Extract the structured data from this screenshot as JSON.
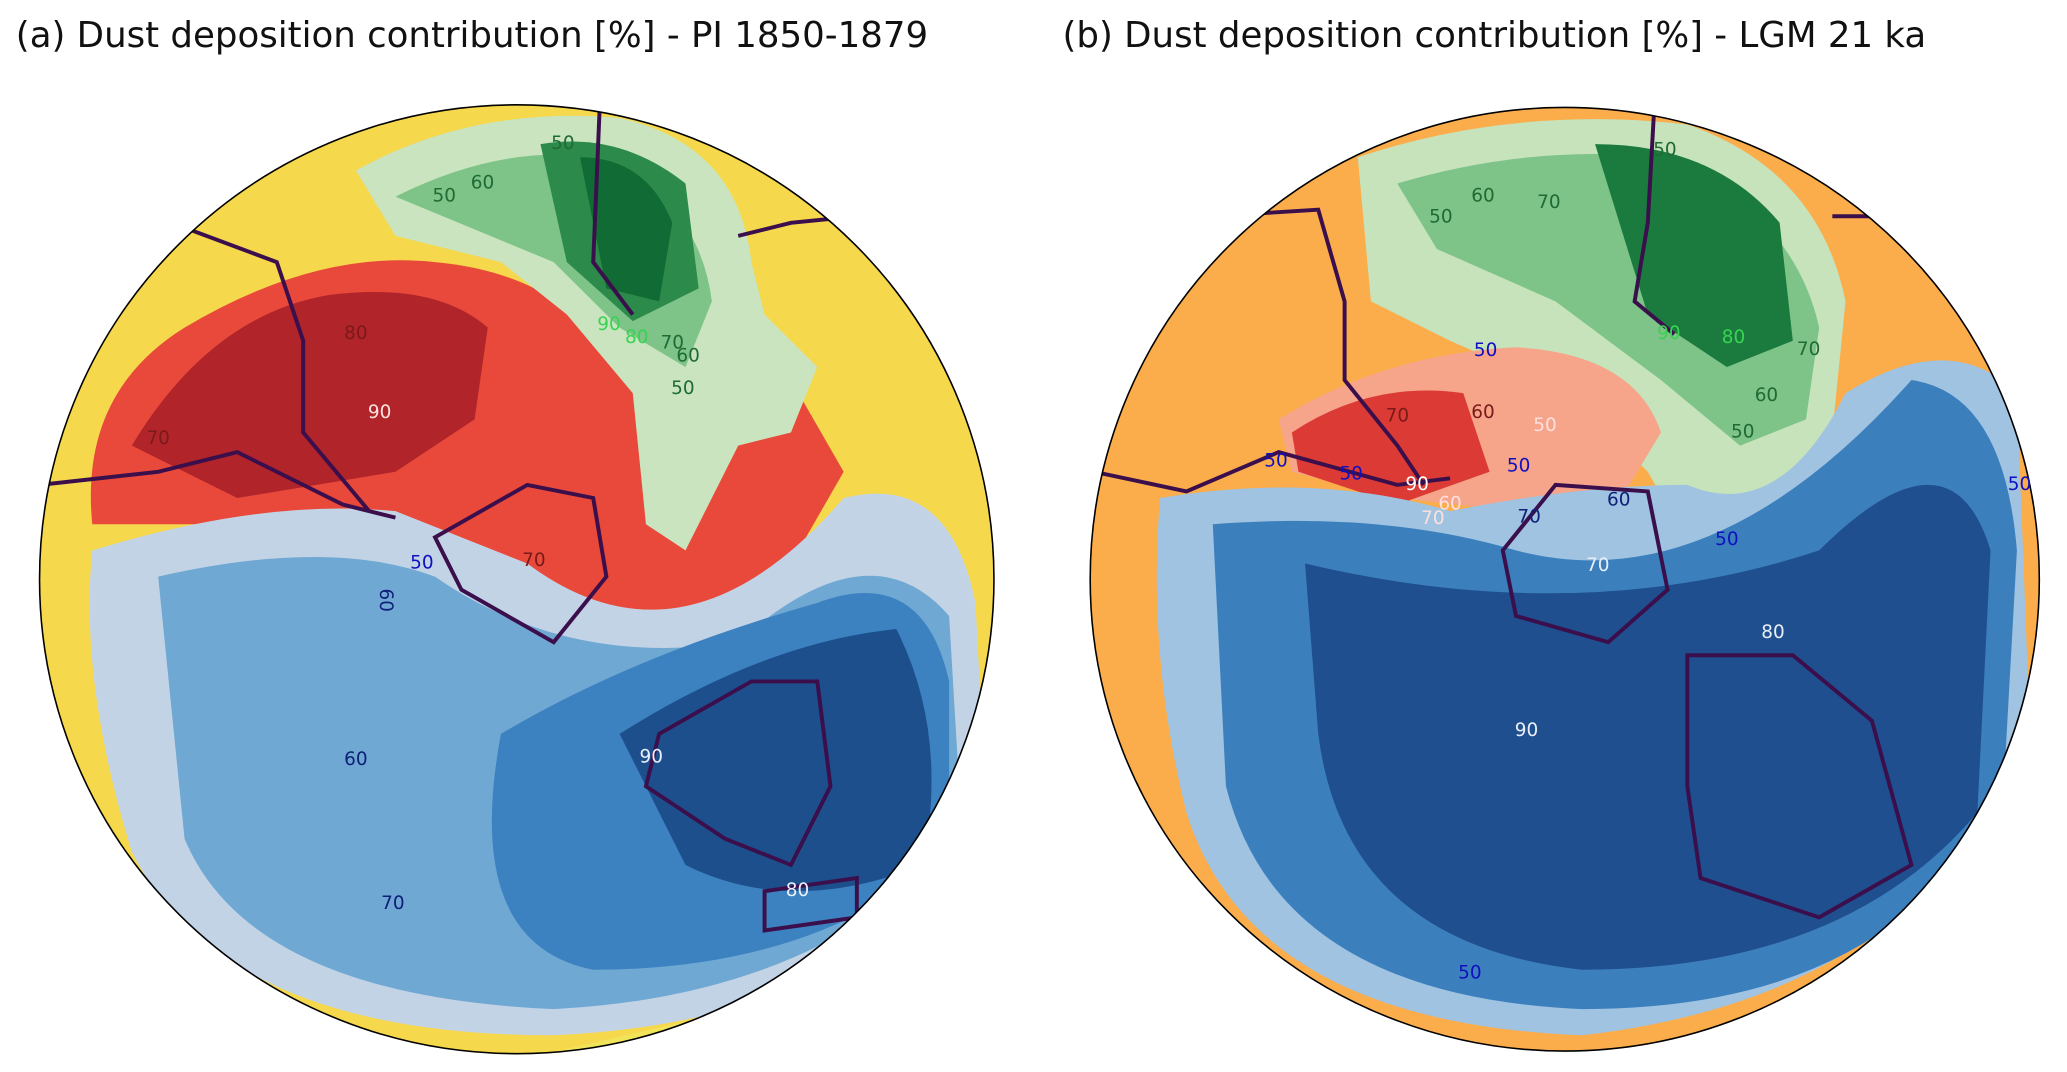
{
  "panels": [
    {
      "title": "(a) Dust deposition contribution [%] - PI 1850-1879",
      "contour_labels": [
        "50",
        "60",
        "50",
        "80",
        "90",
        "70",
        "90",
        "80",
        "70",
        "60",
        "50",
        "70",
        "50",
        "60",
        "60",
        "90",
        "80",
        "70"
      ]
    },
    {
      "title": "(b) Dust deposition contribution [%] - LGM 21 ka",
      "contour_labels": [
        "50",
        "60",
        "70",
        "50",
        "90",
        "80",
        "70",
        "50",
        "70",
        "60",
        "50",
        "50",
        "90",
        "50",
        "50",
        "60",
        "70",
        "70",
        "60",
        "70",
        "60",
        "50",
        "50",
        "80",
        "90",
        "50",
        "50"
      ]
    }
  ]
}
